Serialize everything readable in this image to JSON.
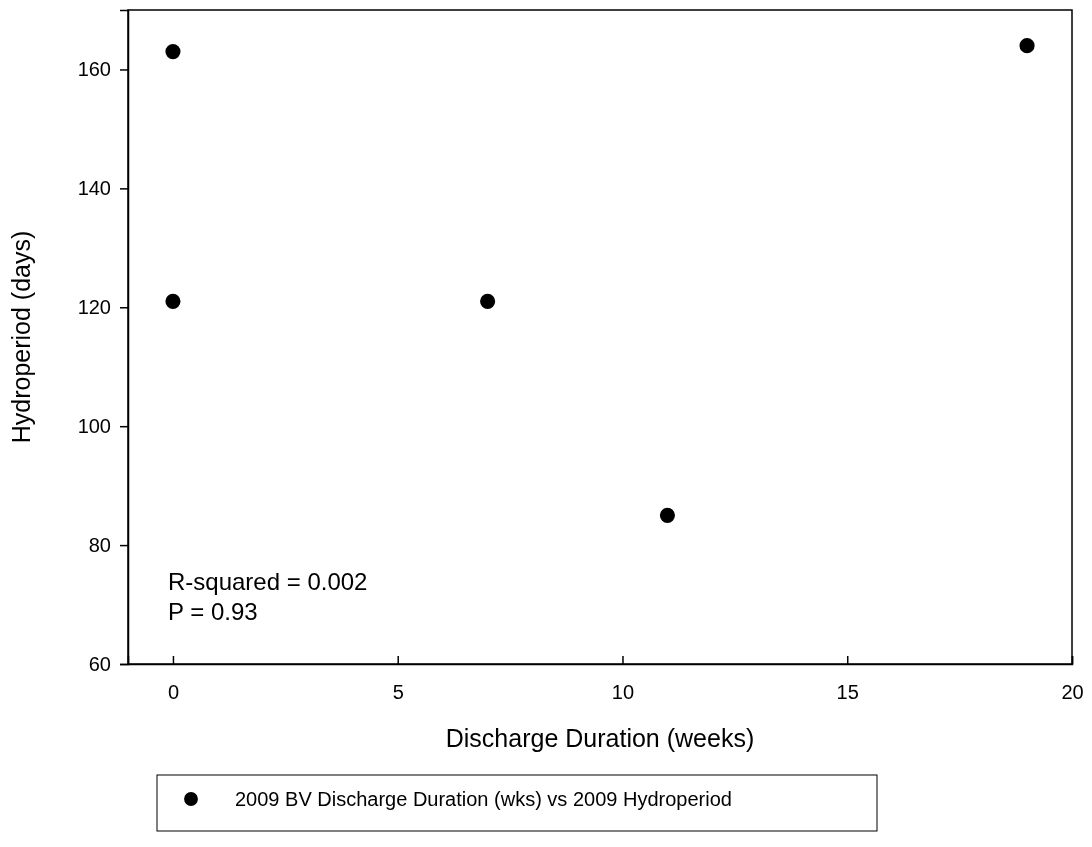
{
  "chart_data": {
    "type": "scatter",
    "xlabel": "Discharge Duration (weeks)",
    "ylabel": "Hydroperiod (days)",
    "x": [
      0,
      0,
      7,
      11,
      19
    ],
    "series": [
      {
        "name": "2009 BV Discharge Duration (wks) vs 2009 Hydroperiod",
        "color": "#000000",
        "values": [
          163,
          121,
          121,
          85,
          164
        ]
      }
    ],
    "xlim": [
      -1,
      20
    ],
    "xticks": [
      0,
      5,
      10,
      15,
      20
    ],
    "ylim": [
      60,
      170
    ],
    "yticks": [
      60,
      80,
      100,
      120,
      140,
      160
    ],
    "annotations": [
      "R-squared = 0.002",
      "P = 0.93"
    ],
    "marker": "circle",
    "legend": "bottom",
    "grid": false
  }
}
